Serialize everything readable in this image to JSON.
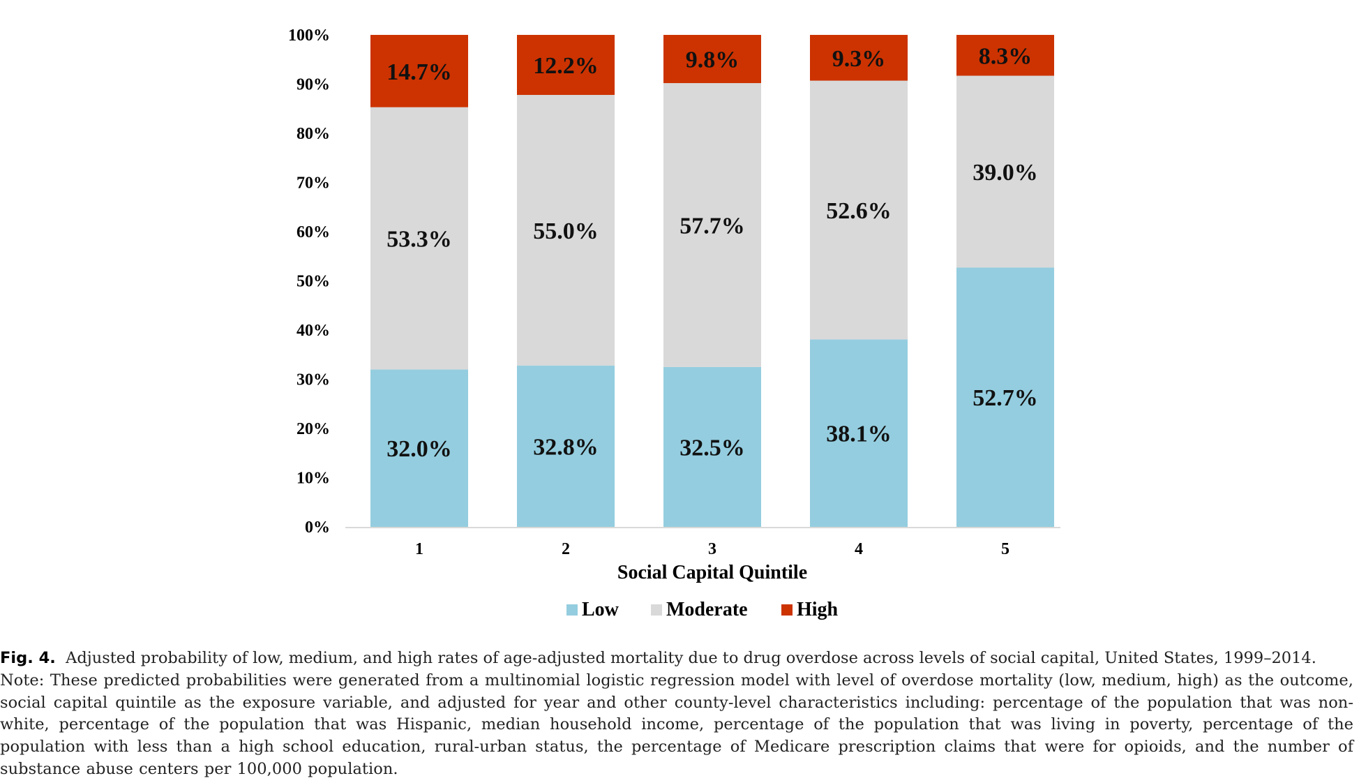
{
  "chart_data": {
    "type": "bar",
    "stacked": true,
    "percent_stacked": true,
    "categories": [
      "1",
      "2",
      "3",
      "4",
      "5"
    ],
    "series": [
      {
        "name": "Low",
        "color": "#94cddf",
        "values": [
          32.0,
          32.8,
          32.5,
          38.1,
          52.7
        ],
        "labels": [
          "32.0%",
          "32.8%",
          "32.5%",
          "38.1%",
          "52.7%"
        ]
      },
      {
        "name": "Moderate",
        "color": "#d9d9d9",
        "values": [
          53.3,
          55.0,
          57.7,
          52.6,
          39.0
        ],
        "labels": [
          "53.3%",
          "55.0%",
          "57.7%",
          "52.6%",
          "39.0%"
        ]
      },
      {
        "name": "High",
        "color": "#cc3300",
        "values": [
          14.7,
          12.2,
          9.8,
          9.3,
          8.3
        ],
        "labels": [
          "14.7%",
          "12.2%",
          "9.8%",
          "9.3%",
          "8.3%"
        ]
      }
    ],
    "xlabel": "Social Capital Quintile",
    "ylabel": "",
    "ylim": [
      0,
      100
    ],
    "yticks": [
      "0%",
      "10%",
      "20%",
      "30%",
      "40%",
      "50%",
      "60%",
      "70%",
      "80%",
      "90%",
      "100%"
    ],
    "grid": false,
    "legend": "bottom"
  },
  "caption": {
    "fig_label": "Fig. 4.",
    "title": "Adjusted probability of low, medium, and high rates of age-adjusted mortality due to drug overdose across levels of social capital, United States, 1999–2014.",
    "note": "Note: These predicted probabilities were generated from a multinomial logistic regression model with level of overdose mortality (low, medium, high) as the outcome, social capital quintile as the exposure variable, and adjusted for year and other county-level characteristics including: percentage of the population that was non-white, percentage of the population that was Hispanic, median household income, percentage of the population that was living in poverty, percentage of the population with less than a high school education, rural-urban status, the percentage of Medicare prescription claims that were for opioids, and the number of substance abuse centers per 100,000 population."
  }
}
